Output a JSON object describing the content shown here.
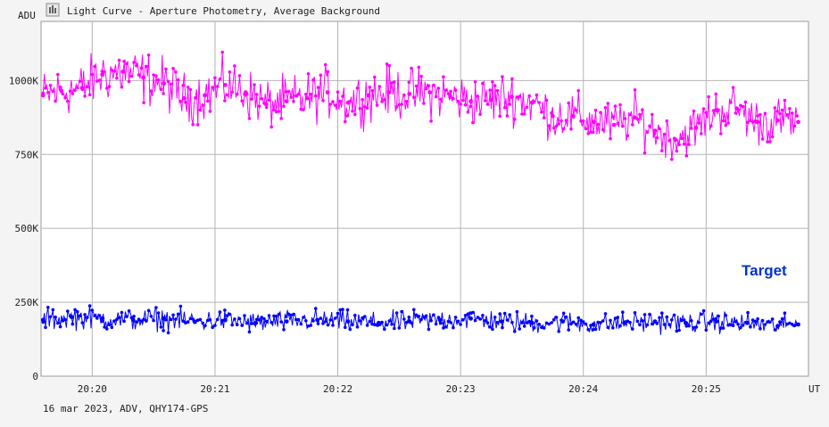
{
  "window": {
    "title": "Light Curve - Aperture Photometry, Average Background",
    "footer": "16 mar 2023, ADV, QHY174-GPS"
  },
  "chart_data": {
    "type": "line",
    "ylabel": "ADU",
    "xlabel": "UT",
    "ylim": [
      0,
      1200000
    ],
    "xlim": [
      "20:19:35",
      "20:25:50"
    ],
    "grid": true,
    "y_ticks": [
      {
        "value": 0,
        "label": "0"
      },
      {
        "value": 250000,
        "label": "250K"
      },
      {
        "value": 500000,
        "label": "500K"
      },
      {
        "value": 750000,
        "label": "750K"
      },
      {
        "value": 1000000,
        "label": "1000K"
      }
    ],
    "x_ticks": [
      "20:20",
      "20:21",
      "20:22",
      "20:23",
      "20:24",
      "20:25"
    ],
    "annotation": "Target",
    "series": [
      {
        "color": "#ff00ff",
        "x": [
          "20:19:36",
          "20:19:45",
          "20:19:55",
          "20:20:05",
          "20:20:15",
          "20:20:25",
          "20:20:35",
          "20:20:45",
          "20:20:55",
          "20:21:05",
          "20:21:15",
          "20:21:25",
          "20:21:35",
          "20:21:45",
          "20:21:55",
          "20:22:05",
          "20:22:15",
          "20:22:25",
          "20:22:35",
          "20:22:45",
          "20:22:55",
          "20:23:05",
          "20:23:15",
          "20:23:25",
          "20:23:35",
          "20:23:45",
          "20:23:55",
          "20:24:05",
          "20:24:15",
          "20:24:25",
          "20:24:35",
          "20:24:45",
          "20:24:55",
          "20:25:05",
          "20:25:15",
          "20:25:25",
          "20:25:35",
          "20:25:45"
        ],
        "values": [
          950000,
          965000,
          975000,
          1020000,
          1030000,
          1010000,
          990000,
          940000,
          950000,
          985000,
          960000,
          920000,
          930000,
          940000,
          960000,
          925000,
          950000,
          960000,
          955000,
          960000,
          945000,
          930000,
          935000,
          945000,
          925000,
          880000,
          880000,
          860000,
          850000,
          875000,
          830000,
          800000,
          840000,
          900000,
          905000,
          860000,
          865000,
          860000
        ]
      },
      {
        "color": "#0000ff",
        "x": [
          "20:19:36",
          "20:19:50",
          "20:20:05",
          "20:20:20",
          "20:20:35",
          "20:20:50",
          "20:21:05",
          "20:21:20",
          "20:21:35",
          "20:21:50",
          "20:22:05",
          "20:22:20",
          "20:22:35",
          "20:22:50",
          "20:23:05",
          "20:23:20",
          "20:23:35",
          "20:23:50",
          "20:24:05",
          "20:24:20",
          "20:24:35",
          "20:24:50",
          "20:25:05",
          "20:25:20",
          "20:25:35",
          "20:25:45"
        ],
        "values": [
          190000,
          200000,
          195000,
          190000,
          195000,
          185000,
          190000,
          180000,
          185000,
          190000,
          185000,
          180000,
          185000,
          190000,
          195000,
          185000,
          180000,
          185000,
          175000,
          180000,
          185000,
          180000,
          185000,
          180000,
          170000,
          175000
        ]
      }
    ]
  }
}
